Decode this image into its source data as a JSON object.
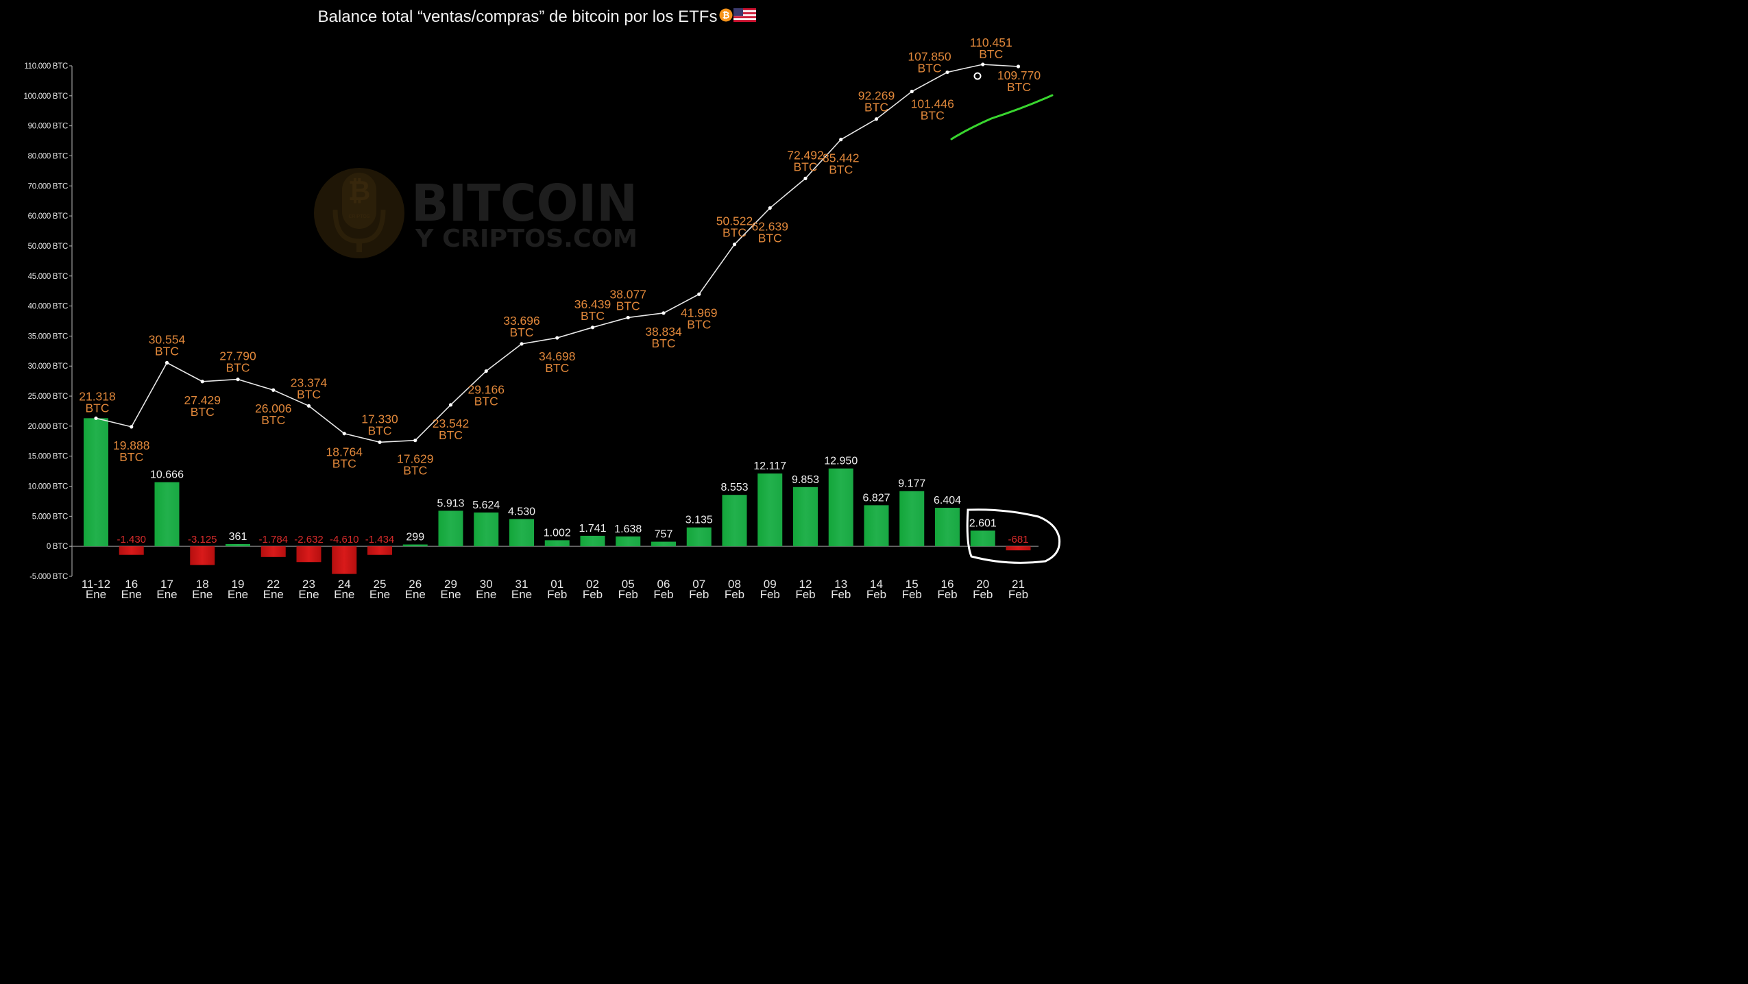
{
  "title": "Balance total “ventas/compras” de bitcoin por los ETFs",
  "icons": [
    "bitcoin-icon",
    "us-flag-icon"
  ],
  "watermark": {
    "line1": "BITCOIN",
    "line2": "Y CRIPTOS.COM",
    "mic_text": "CRIPTOS"
  },
  "colors": {
    "background": "#000000",
    "bar_positive": "#22b14c",
    "bar_negative": "#d91a1a",
    "line": "#e6e6e6",
    "line_label": "#e0873a",
    "annotation_green": "#39d62f",
    "annotation_circle": "#ffffff"
  },
  "chart_data": {
    "type": "bar+line",
    "categories": [
      "11-12 Ene",
      "16 Ene",
      "17 Ene",
      "18 Ene",
      "19 Ene",
      "22 Ene",
      "23 Ene",
      "24 Ene",
      "25 Ene",
      "26 Ene",
      "29 Ene",
      "30 Ene",
      "31 Ene",
      "01 Feb",
      "02 Feb",
      "05 Feb",
      "06 Feb",
      "07 Feb",
      "08 Feb",
      "09 Feb",
      "12 Feb",
      "13 Feb",
      "14 Feb",
      "15 Feb",
      "16 Feb",
      "20 Feb",
      "21 Feb"
    ],
    "category_lines": [
      [
        "11-12",
        "Ene"
      ],
      [
        "16",
        "Ene"
      ],
      [
        "17",
        "Ene"
      ],
      [
        "18",
        "Ene"
      ],
      [
        "19",
        "Ene"
      ],
      [
        "22",
        "Ene"
      ],
      [
        "23",
        "Ene"
      ],
      [
        "24",
        "Ene"
      ],
      [
        "25",
        "Ene"
      ],
      [
        "26",
        "Ene"
      ],
      [
        "29",
        "Ene"
      ],
      [
        "30",
        "Ene"
      ],
      [
        "31",
        "Ene"
      ],
      [
        "01",
        "Feb"
      ],
      [
        "02",
        "Feb"
      ],
      [
        "05",
        "Feb"
      ],
      [
        "06",
        "Feb"
      ],
      [
        "07",
        "Feb"
      ],
      [
        "08",
        "Feb"
      ],
      [
        "09",
        "Feb"
      ],
      [
        "12",
        "Feb"
      ],
      [
        "13",
        "Feb"
      ],
      [
        "14",
        "Feb"
      ],
      [
        "15",
        "Feb"
      ],
      [
        "16",
        "Feb"
      ],
      [
        "20",
        "Feb"
      ],
      [
        "21",
        "Feb"
      ]
    ],
    "series": [
      {
        "type": "bar",
        "values": [
          21318,
          -1430,
          10666,
          -3125,
          361,
          -1784,
          -2632,
          -4610,
          -1434,
          299,
          5913,
          5624,
          4530,
          1002,
          1741,
          1638,
          757,
          3135,
          8553,
          12117,
          9853,
          12950,
          6827,
          9177,
          6404,
          2601,
          -681
        ],
        "labels": [
          "",
          "-1.430",
          "10.666",
          "-3.125",
          "361",
          "-1.784",
          "-2.632",
          "-4.610",
          "-1.434",
          "299",
          "5.913",
          "5.624",
          "4.530",
          "1.002",
          "1.741",
          "1.638",
          "757",
          "3.135",
          "8.553",
          "12.117",
          "9.853",
          "12.950",
          "6.827",
          "9.177",
          "6.404",
          "2.601",
          "-681"
        ]
      },
      {
        "type": "line",
        "values": [
          21318,
          19888,
          30554,
          27429,
          27790,
          26006,
          23374,
          18764,
          17330,
          17629,
          23542,
          29166,
          33696,
          34698,
          36439,
          38077,
          38834,
          41969,
          50522,
          62639,
          72492,
          85442,
          92269,
          101446,
          107850,
          110451,
          109770
        ],
        "labels": [
          "21.318",
          "19.888",
          "30.554",
          "27.429",
          "27.790",
          "26.006",
          "23.374",
          "18.764",
          "17.330",
          "17.629",
          "23.542",
          "29.166",
          "33.696",
          "34.698",
          "36.439",
          "38.077",
          "38.834",
          "41.969",
          "50.522",
          "62.639",
          "72.492",
          "85.442",
          "92.269",
          "101.446",
          "107.850",
          "110.451",
          "109.770"
        ],
        "unit_label": "BTC"
      }
    ],
    "y_ticks": [
      -5000,
      0,
      5000,
      10000,
      15000,
      20000,
      25000,
      30000,
      35000,
      40000,
      45000,
      50000,
      60000,
      70000,
      80000,
      90000,
      100000,
      110000
    ],
    "y_tick_labels": [
      "-5.000 BTC",
      "0 BTC",
      "5.000 BTC",
      "10.000 BTC",
      "15.000 BTC",
      "20.000 BTC",
      "25.000 BTC",
      "30.000 BTC",
      "35.000 BTC",
      "40.000 BTC",
      "45.000 BTC",
      "50.000 BTC",
      "60.000 BTC",
      "70.000 BTC",
      "80.000 BTC",
      "90.000 BTC",
      "100.000 BTC",
      "110.000 BTC"
    ],
    "y_scale": "piecewise-linear (ticks evenly spaced)",
    "grid": false,
    "legend": "none",
    "annotations": [
      "hand-drawn circle around 20 Feb and 21 Feb bars",
      "green upward stroke beside the top of the line"
    ]
  }
}
